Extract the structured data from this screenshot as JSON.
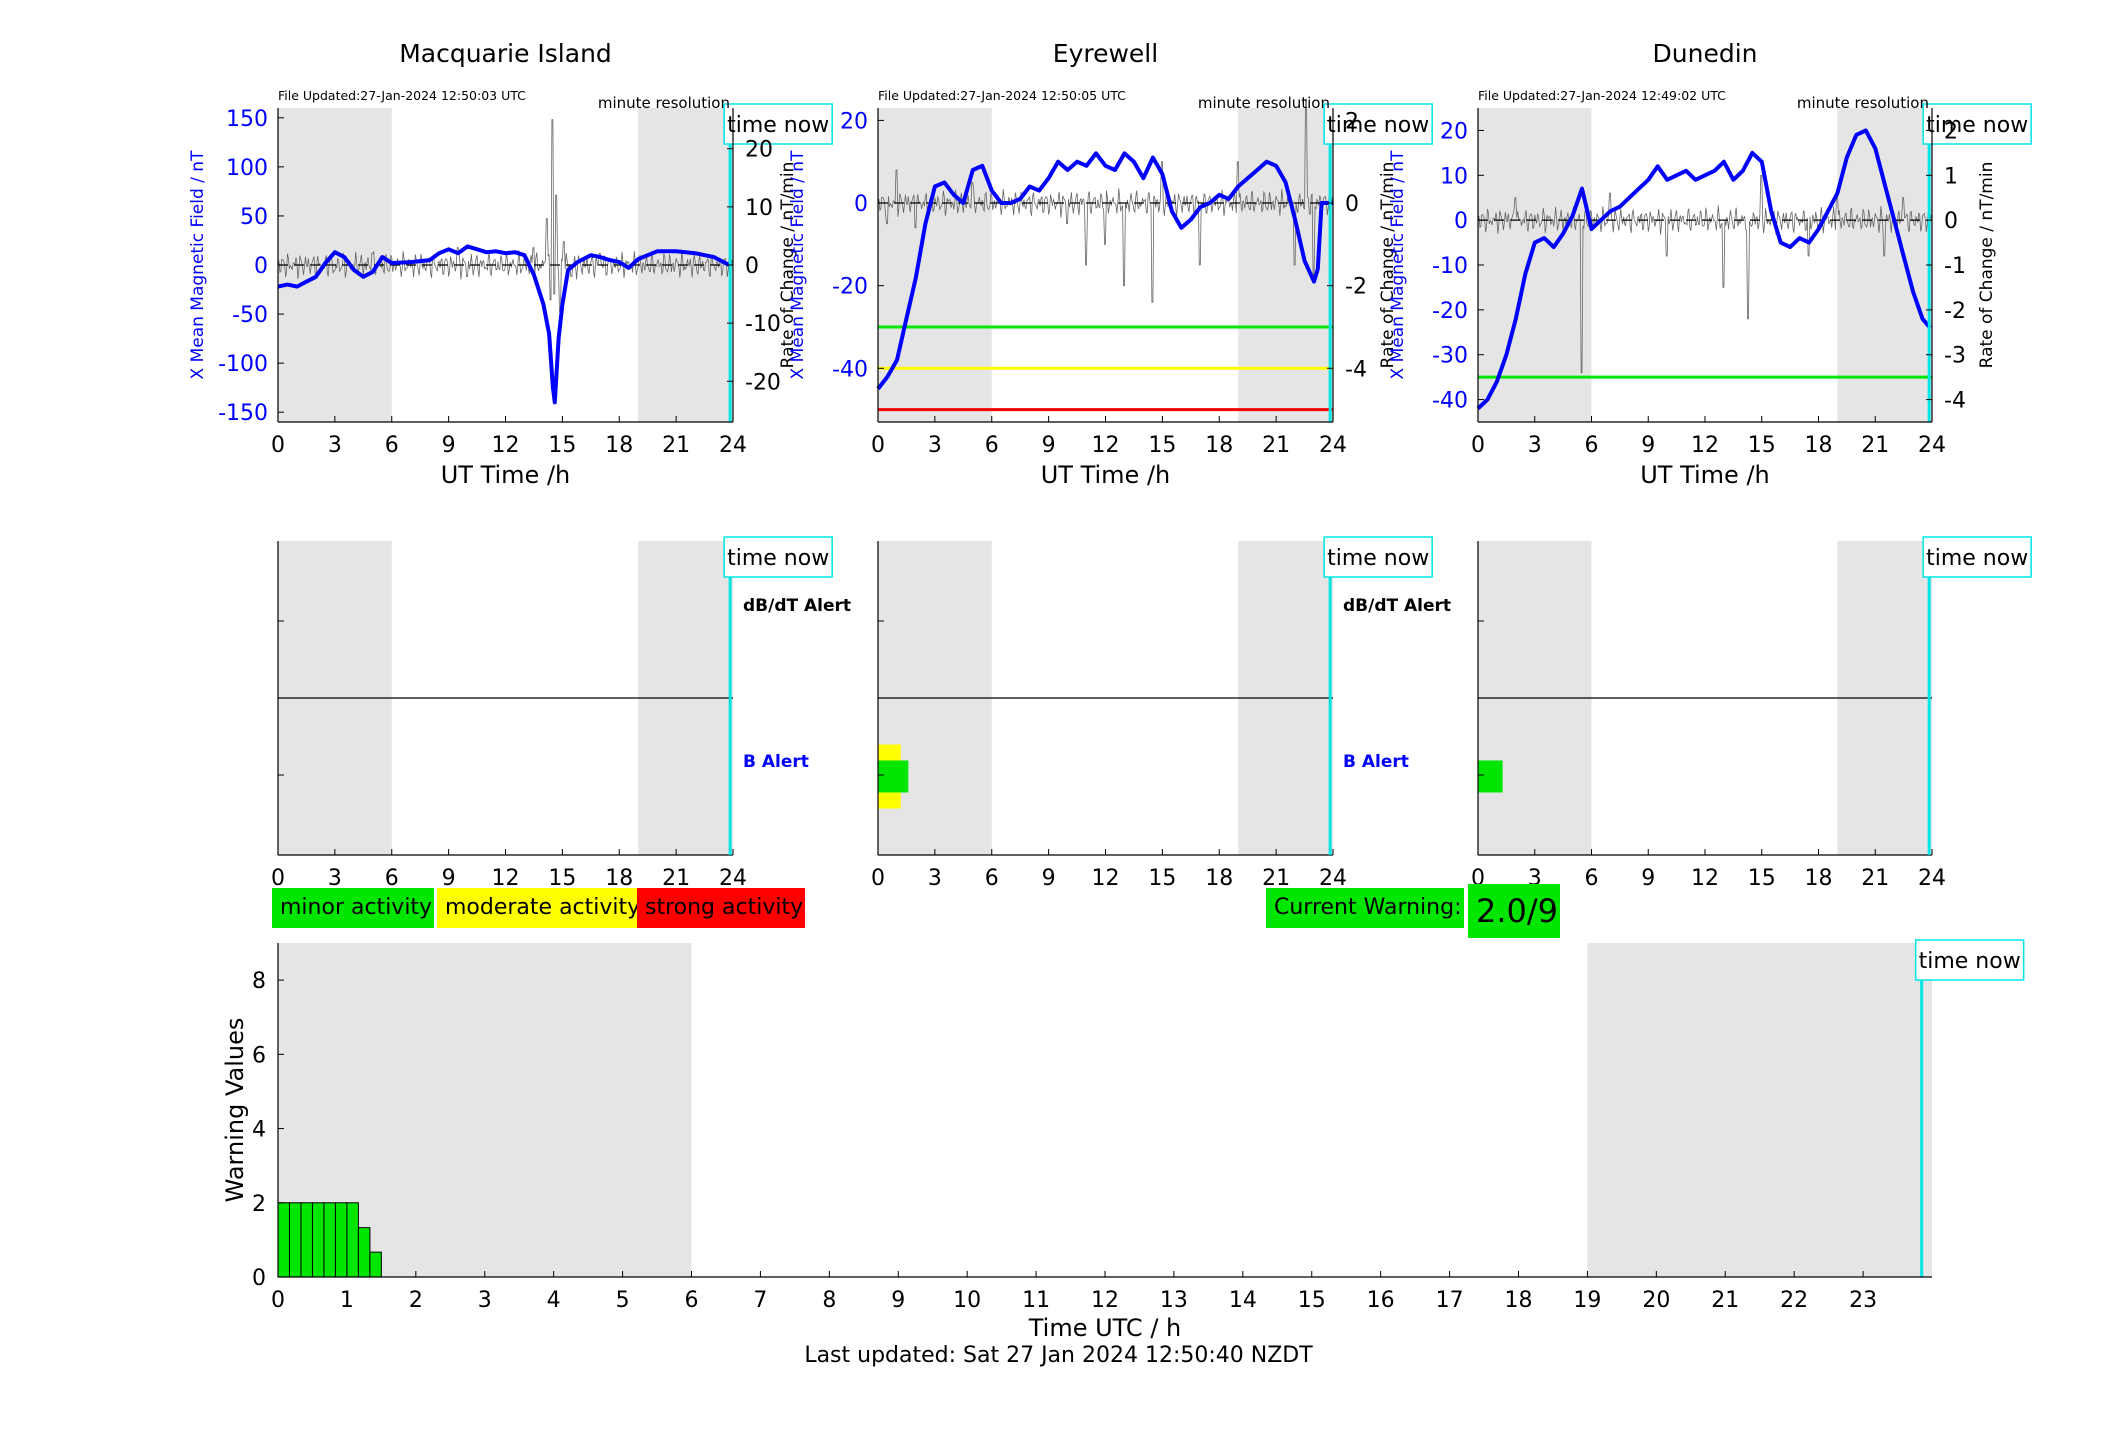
{
  "stations": [
    {
      "name": "Macquarie Island",
      "file_updated": "File Updated:27-Jan-2024 12:50:03 UTC",
      "resolution": "minute resolution",
      "x_ticks": [
        0,
        3,
        6,
        9,
        12,
        15,
        18,
        21,
        24
      ],
      "x_label": "UT Time /h",
      "left_label": "X Mean Magnetic Field / nT",
      "right_label": "Rate of Change / nT/min",
      "left_ylim": [
        -160,
        160
      ],
      "left_ticks": [
        -150,
        -100,
        -50,
        0,
        50,
        100,
        150
      ],
      "right_ylim": [
        -27,
        27
      ],
      "right_ticks": [
        -20,
        -10,
        0,
        10,
        20
      ],
      "night_shading": [
        [
          0,
          6
        ],
        [
          19,
          24
        ]
      ],
      "time_now": 23.85,
      "time_now_label": "time now",
      "threshold_lines": [],
      "field_series": [
        [
          0,
          -22
        ],
        [
          0.5,
          -20
        ],
        [
          1,
          -22
        ],
        [
          1.5,
          -17
        ],
        [
          2,
          -12
        ],
        [
          2.5,
          2
        ],
        [
          3,
          13
        ],
        [
          3.5,
          8
        ],
        [
          4,
          -5
        ],
        [
          4.5,
          -12
        ],
        [
          5,
          -7
        ],
        [
          5.5,
          8
        ],
        [
          6,
          2
        ],
        [
          7,
          3
        ],
        [
          8,
          5
        ],
        [
          8.5,
          12
        ],
        [
          9,
          16
        ],
        [
          9.5,
          12
        ],
        [
          10,
          19
        ],
        [
          10.5,
          16
        ],
        [
          11,
          13
        ],
        [
          11.5,
          14
        ],
        [
          12,
          12
        ],
        [
          12.5,
          13
        ],
        [
          13,
          10
        ],
        [
          13.5,
          -10
        ],
        [
          14,
          -40
        ],
        [
          14.3,
          -70
        ],
        [
          14.5,
          -125
        ],
        [
          14.6,
          -140
        ],
        [
          14.8,
          -75
        ],
        [
          15,
          -40
        ],
        [
          15.3,
          -5
        ],
        [
          15.8,
          3
        ],
        [
          16.5,
          10
        ],
        [
          17,
          8
        ],
        [
          17.5,
          5
        ],
        [
          18,
          3
        ],
        [
          18.5,
          -3
        ],
        [
          19,
          6
        ],
        [
          19.5,
          10
        ],
        [
          20,
          14
        ],
        [
          21,
          14
        ],
        [
          22,
          12
        ],
        [
          23,
          8
        ],
        [
          23.8,
          0
        ]
      ],
      "rate_spikes": [
        [
          3,
          -1
        ],
        [
          5,
          2
        ],
        [
          9.5,
          3
        ],
        [
          10,
          -2
        ],
        [
          13.5,
          3
        ],
        [
          14.2,
          8
        ],
        [
          14.4,
          -6
        ],
        [
          14.5,
          25
        ],
        [
          14.6,
          -5
        ],
        [
          14.7,
          12
        ],
        [
          14.9,
          -8
        ],
        [
          15.1,
          4
        ],
        [
          15.5,
          -2
        ],
        [
          17,
          2
        ]
      ],
      "alert_panel": {
        "labels": [
          "dB/dT Alert",
          "B Alert"
        ],
        "bars": []
      }
    },
    {
      "name": "Eyrewell",
      "file_updated": "File Updated:27-Jan-2024 12:50:05 UTC",
      "resolution": "minute resolution",
      "x_ticks": [
        0,
        3,
        6,
        9,
        12,
        15,
        18,
        21,
        24
      ],
      "x_label": "UT Time /h",
      "left_label": "X Mean Magnetic Field / nT",
      "right_label": "Rate of Change / nT/min",
      "left_ylim": [
        -53,
        23
      ],
      "left_ticks": [
        -40,
        -20,
        0,
        20
      ],
      "right_ylim": [
        -5.3,
        2.3
      ],
      "right_ticks": [
        -4,
        -2,
        0,
        2
      ],
      "night_shading": [
        [
          0,
          6
        ],
        [
          19,
          24
        ]
      ],
      "time_now": 23.85,
      "time_now_label": "time now",
      "threshold_lines": [
        {
          "value": -30,
          "color": "#00e600"
        },
        {
          "value": -40,
          "color": "#ffff00"
        },
        {
          "value": -50,
          "color": "#ff0000"
        }
      ],
      "field_series": [
        [
          0,
          -45
        ],
        [
          0.5,
          -42
        ],
        [
          1,
          -38
        ],
        [
          1.5,
          -28
        ],
        [
          2,
          -18
        ],
        [
          2.5,
          -5
        ],
        [
          3,
          4
        ],
        [
          3.5,
          5
        ],
        [
          4,
          2
        ],
        [
          4.5,
          0
        ],
        [
          5,
          8
        ],
        [
          5.5,
          9
        ],
        [
          6,
          3
        ],
        [
          6.5,
          0
        ],
        [
          7,
          0
        ],
        [
          7.5,
          1
        ],
        [
          8,
          4
        ],
        [
          8.5,
          3
        ],
        [
          9,
          6
        ],
        [
          9.5,
          10
        ],
        [
          10,
          8
        ],
        [
          10.5,
          10
        ],
        [
          11,
          9
        ],
        [
          11.5,
          12
        ],
        [
          12,
          9
        ],
        [
          12.5,
          8
        ],
        [
          13,
          12
        ],
        [
          13.5,
          10
        ],
        [
          14,
          6
        ],
        [
          14.5,
          11
        ],
        [
          15,
          7
        ],
        [
          15.5,
          -2
        ],
        [
          16,
          -6
        ],
        [
          16.5,
          -4
        ],
        [
          17,
          -1
        ],
        [
          17.5,
          0
        ],
        [
          18,
          2
        ],
        [
          18.5,
          1
        ],
        [
          19,
          4
        ],
        [
          19.5,
          6
        ],
        [
          20,
          8
        ],
        [
          20.5,
          10
        ],
        [
          21,
          9
        ],
        [
          21.5,
          5
        ],
        [
          22,
          -4
        ],
        [
          22.5,
          -14
        ],
        [
          23,
          -19
        ],
        [
          23.2,
          -16
        ],
        [
          23.4,
          0
        ],
        [
          24,
          0
        ]
      ],
      "rate_spikes": [
        [
          0.5,
          -0.5
        ],
        [
          1,
          0.8
        ],
        [
          2,
          -0.6
        ],
        [
          5,
          0.5
        ],
        [
          10,
          -0.5
        ],
        [
          11,
          -1.5
        ],
        [
          12,
          -1
        ],
        [
          13,
          -2
        ],
        [
          14.5,
          -2.4
        ],
        [
          15,
          1
        ],
        [
          17,
          -1.5
        ],
        [
          19,
          1
        ],
        [
          22,
          -1.5
        ],
        [
          22.6,
          2.5
        ],
        [
          23,
          -1.8
        ]
      ],
      "alert_panel": {
        "labels": [
          "dB/dT Alert",
          "B Alert"
        ],
        "bars": [
          {
            "x0": 0,
            "x1": 1.2,
            "lev": "B",
            "h": 2,
            "color": "#ffff00"
          },
          {
            "x0": 0,
            "x1": 1.6,
            "lev": "B",
            "h": 1,
            "color": "#00e600"
          }
        ]
      }
    },
    {
      "name": "Dunedin",
      "file_updated": "File Updated:27-Jan-2024 12:49:02 UTC",
      "resolution": "minute resolution",
      "x_ticks": [
        0,
        3,
        6,
        9,
        12,
        15,
        18,
        21,
        24
      ],
      "x_label": "UT Time /h",
      "left_label": "X Mean Magnetic Field / nT",
      "right_label": "Rate of Change / nT/min",
      "left_ylim": [
        -45,
        25
      ],
      "left_ticks": [
        -40,
        -30,
        -20,
        -10,
        0,
        10,
        20
      ],
      "right_ylim": [
        -4.5,
        2.5
      ],
      "right_ticks": [
        -4,
        -3,
        -2,
        -1,
        0,
        1,
        2
      ],
      "night_shading": [
        [
          0,
          6
        ],
        [
          19,
          24
        ]
      ],
      "time_now": 23.85,
      "time_now_label": "time now",
      "threshold_lines": [
        {
          "value": -35,
          "color": "#00e600"
        }
      ],
      "field_series": [
        [
          0,
          -42
        ],
        [
          0.5,
          -40
        ],
        [
          1,
          -36
        ],
        [
          1.5,
          -30
        ],
        [
          2,
          -22
        ],
        [
          2.5,
          -12
        ],
        [
          3,
          -5
        ],
        [
          3.5,
          -4
        ],
        [
          4,
          -6
        ],
        [
          4.5,
          -3
        ],
        [
          5,
          1
        ],
        [
          5.5,
          7
        ],
        [
          6,
          -2
        ],
        [
          6.5,
          0
        ],
        [
          7,
          2
        ],
        [
          7.5,
          3
        ],
        [
          8,
          5
        ],
        [
          8.5,
          7
        ],
        [
          9,
          9
        ],
        [
          9.5,
          12
        ],
        [
          10,
          9
        ],
        [
          10.5,
          10
        ],
        [
          11,
          11
        ],
        [
          11.5,
          9
        ],
        [
          12,
          10
        ],
        [
          12.5,
          11
        ],
        [
          13,
          13
        ],
        [
          13.5,
          9
        ],
        [
          14,
          11
        ],
        [
          14.5,
          15
        ],
        [
          15,
          13
        ],
        [
          15.5,
          2
        ],
        [
          16,
          -5
        ],
        [
          16.5,
          -6
        ],
        [
          17,
          -4
        ],
        [
          17.5,
          -5
        ],
        [
          18,
          -2
        ],
        [
          18.5,
          2
        ],
        [
          19,
          6
        ],
        [
          19.5,
          14
        ],
        [
          20,
          19
        ],
        [
          20.5,
          20
        ],
        [
          21,
          16
        ],
        [
          21.5,
          8
        ],
        [
          22,
          0
        ],
        [
          22.5,
          -8
        ],
        [
          23,
          -16
        ],
        [
          23.5,
          -22
        ],
        [
          23.9,
          -24
        ]
      ],
      "rate_spikes": [
        [
          2,
          0.5
        ],
        [
          5.5,
          -3.4
        ],
        [
          7,
          0.6
        ],
        [
          10,
          -0.8
        ],
        [
          13,
          -1.5
        ],
        [
          14.3,
          -2.2
        ],
        [
          15,
          1
        ],
        [
          17.5,
          -0.8
        ],
        [
          19,
          0.6
        ],
        [
          21.5,
          -0.8
        ],
        [
          22.5,
          0.5
        ]
      ],
      "alert_panel": {
        "labels": [],
        "bars": [
          {
            "x0": 0,
            "x1": 1.3,
            "lev": "B",
            "h": 1,
            "color": "#00e600"
          }
        ]
      }
    }
  ],
  "legend": {
    "minor": {
      "label": "minor activity",
      "color": "#00e600"
    },
    "moderate": {
      "label": "moderate activity",
      "color": "#ffff00"
    },
    "strong": {
      "label": "strong activity",
      "color": "#ff0000"
    },
    "current_warning_label": "Current Warning:",
    "current_warning_value": "2.0/9"
  },
  "chart_data": {
    "type": "bar",
    "xlabel": "Time UTC / h",
    "ylabel": "Warning Values",
    "xlim": [
      0,
      24
    ],
    "ylim": [
      0,
      9
    ],
    "x_ticks": [
      0,
      1,
      2,
      3,
      4,
      5,
      6,
      7,
      8,
      9,
      10,
      11,
      12,
      13,
      14,
      15,
      16,
      17,
      18,
      19,
      20,
      21,
      22,
      23
    ],
    "y_ticks": [
      0,
      2,
      4,
      6,
      8
    ],
    "night_shading": [
      [
        0,
        6
      ],
      [
        19,
        24
      ]
    ],
    "time_now": 23.85,
    "time_now_label": "time now",
    "bin_width_h": 0.1667,
    "bar_color": "#00e600",
    "x": [
      0,
      0.1667,
      0.3333,
      0.5,
      0.6667,
      0.8333,
      1.0,
      1.1667,
      1.3333
    ],
    "values": [
      2,
      2,
      2,
      2,
      2,
      2,
      2,
      1.33,
      0.67
    ]
  },
  "footer": "Last updated: Sat 27 Jan 2024 12:50:40 NZDT"
}
